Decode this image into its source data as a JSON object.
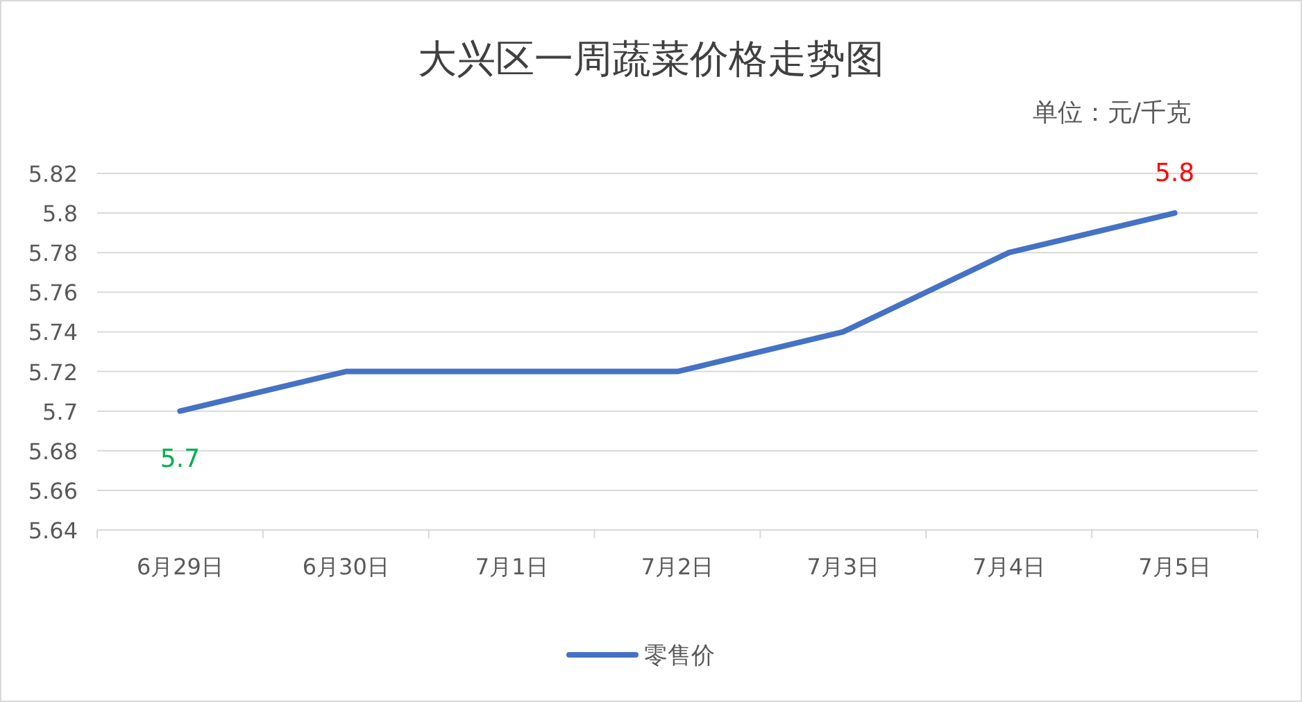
{
  "chart_data": {
    "type": "line",
    "title": "大兴区一周蔬菜价格走势图",
    "subtitle": "单位：元/千克",
    "categories": [
      "6月29日",
      "6月30日",
      "7月1日",
      "7月2日",
      "7月3日",
      "7月4日",
      "7月5日"
    ],
    "series": [
      {
        "name": "零售价",
        "color": "#4472c4",
        "values": [
          5.7,
          5.72,
          5.72,
          5.72,
          5.74,
          5.78,
          5.8
        ]
      }
    ],
    "annotations": [
      {
        "text": "5.7",
        "x": "6月29日",
        "y": 5.7
      },
      {
        "text": "5.8",
        "x": "7月5日",
        "y": 5.8
      }
    ],
    "ylim": [
      5.64,
      5.82
    ],
    "yticks": [
      5.64,
      5.66,
      5.68,
      5.7,
      5.72,
      5.74,
      5.76,
      5.78,
      5.8,
      5.82
    ],
    "grid": "y",
    "legend": "bottom",
    "marker": "none",
    "line_style": "solid"
  }
}
